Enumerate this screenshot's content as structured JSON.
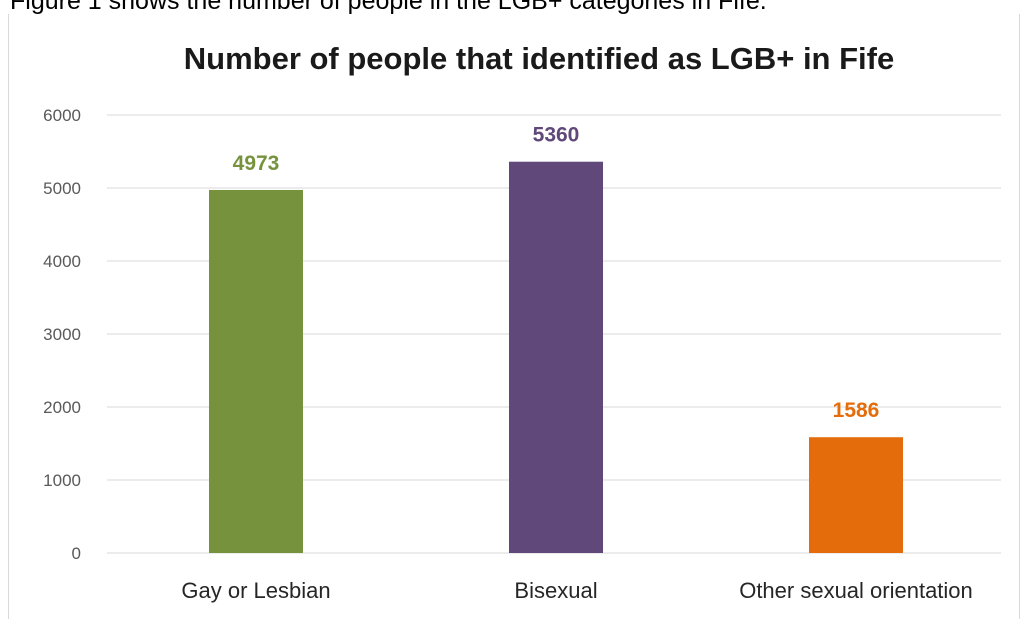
{
  "caption": "Figure 1 shows the number of people in the LGB+ categories in Fife.",
  "chart_data": {
    "type": "bar",
    "title": "Number of people that identified as LGB+ in Fife",
    "categories": [
      "Gay or Lesbian",
      "Bisexual",
      "Other sexual orientation"
    ],
    "values": [
      4973,
      5360,
      1586
    ],
    "data_labels": [
      "4973",
      "5360",
      "1586"
    ],
    "colors": [
      "#76923c",
      "#60497a",
      "#e46c0a"
    ],
    "ylim": [
      0,
      6000
    ],
    "yticks": [
      "0",
      "1000",
      "2000",
      "3000",
      "4000",
      "5000",
      "6000"
    ],
    "ytick_values": [
      0,
      1000,
      2000,
      3000,
      4000,
      5000,
      6000
    ],
    "grid": true,
    "gridline_color": "#d9d9d9",
    "legend": "none"
  }
}
